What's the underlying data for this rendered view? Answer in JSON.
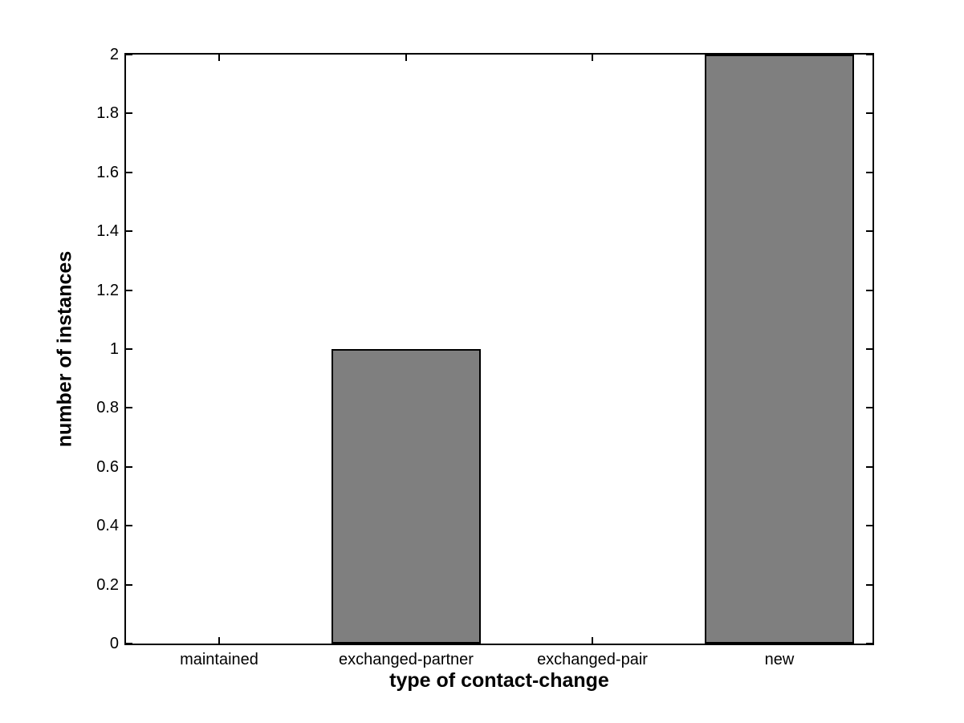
{
  "chart_data": {
    "type": "bar",
    "categories": [
      "maintained",
      "exchanged-partner",
      "exchanged-pair",
      "new"
    ],
    "values": [
      0,
      1,
      0,
      2
    ],
    "title": "",
    "xlabel": "type of contact-change",
    "ylabel": "number of instances",
    "ylim": [
      0,
      2
    ],
    "xlim": [
      0.5,
      4.5
    ],
    "yticks": [
      0,
      0.2,
      0.4,
      0.6,
      0.8,
      1,
      1.2,
      1.4,
      1.6,
      1.8,
      2
    ],
    "ytick_labels": [
      "0",
      "0.2",
      "0.4",
      "0.6",
      "0.8",
      "1",
      "1.2",
      "1.4",
      "1.6",
      "1.8",
      "2"
    ],
    "bar_width_fraction": 0.8,
    "grid": false,
    "legend": null,
    "colors": {
      "bar_fill": "#7f7f7f",
      "bar_edge": "#000000",
      "axis": "#000000",
      "background": "#ffffff",
      "text": "#000000"
    }
  }
}
